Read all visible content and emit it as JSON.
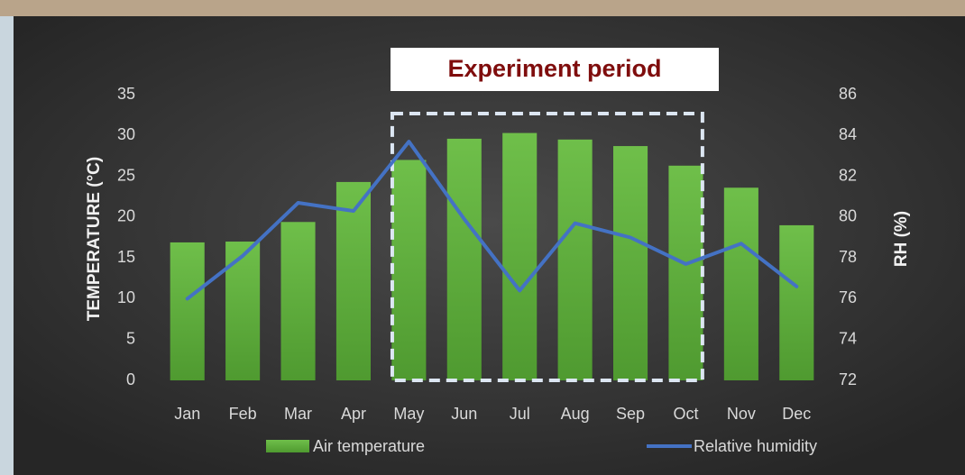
{
  "chart_data": {
    "type": "bar_line",
    "categories": [
      "Jan",
      "Feb",
      "Mar",
      "Apr",
      "May",
      "Jun",
      "Jul",
      "Aug",
      "Sep",
      "Oct",
      "Nov",
      "Dec"
    ],
    "series": [
      {
        "name": "Air temperature",
        "type": "bar",
        "color": "#5fae3e",
        "values": [
          16.9,
          17.0,
          19.4,
          24.3,
          27.0,
          29.6,
          30.3,
          29.5,
          28.7,
          26.3,
          23.6,
          19.0
        ]
      },
      {
        "name": "Relative humidity",
        "type": "line",
        "axis": "y2",
        "color": "#4472c4",
        "values": [
          76.0,
          78.1,
          80.7,
          80.3,
          83.7,
          79.9,
          76.4,
          79.7,
          79.0,
          77.7,
          78.7,
          76.6
        ]
      }
    ],
    "ylabel": "TEMPERATURE (°C)",
    "y2label": "RH (%)",
    "ylim": [
      0,
      35
    ],
    "yticks": [
      0,
      5,
      10,
      15,
      20,
      25,
      30,
      35
    ],
    "y2lim": [
      72,
      86
    ],
    "y2ticks": [
      72,
      74,
      76,
      78,
      80,
      82,
      84,
      86
    ],
    "grid": false,
    "legend": "bottom",
    "annotation": {
      "text": "Experiment period",
      "from": "May",
      "to": "Oct"
    }
  }
}
